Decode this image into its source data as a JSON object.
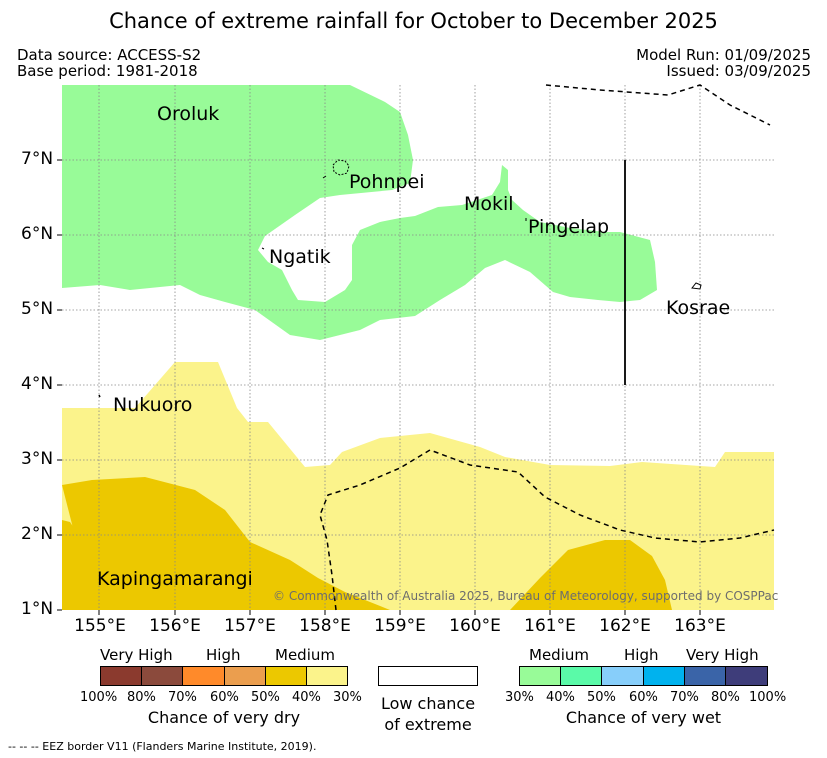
{
  "title": "Chance of extreme rainfall for October to December 2025",
  "header": {
    "data_source": "Data source: ACCESS-S2",
    "base_period": "Base period: 1981-2018",
    "model_run": "Model Run: 01/09/2025",
    "issued": "Issued: 03/09/2025"
  },
  "map": {
    "lat_ticks": [
      "7°N",
      "6°N",
      "5°N",
      "4°N",
      "3°N",
      "2°N",
      "1°N"
    ],
    "lon_ticks": [
      "155°E",
      "156°E",
      "157°E",
      "158°E",
      "159°E",
      "160°E",
      "161°E",
      "162°E",
      "163°E"
    ],
    "places": {
      "oroluk": "Oroluk",
      "pohnpei": "Pohnpei",
      "mokil": "Mokil",
      "pingelap": "Pingelap",
      "ngatik": "Ngatik",
      "kosrae": "Kosrae",
      "nukuoro": "Nukuoro",
      "kapingamarangi": "Kapingamarangi"
    },
    "copyright": "© Commonwealth of Australia 2025, Bureau of Meteorology, supported by COSPPac",
    "colors": {
      "wet_medium": "#98fb98",
      "dry_medium_light": "#fbf38b",
      "dry_medium_dark": "#ecc800"
    }
  },
  "legend": {
    "dry": {
      "labels": [
        "Very High",
        "High",
        "Medium"
      ],
      "percents": [
        "100%",
        "80%",
        "70%",
        "60%",
        "50%",
        "40%",
        "30%"
      ],
      "caption": "Chance of very dry",
      "colors": [
        "#8b3a2e",
        "#8b4a3c",
        "#ff8a2a",
        "#eb9e4e",
        "#ecc800",
        "#fbf38b"
      ]
    },
    "low": {
      "line1": "Low chance",
      "line2": "of extreme"
    },
    "wet": {
      "labels": [
        "Medium",
        "High",
        "Very High"
      ],
      "percents": [
        "30%",
        "40%",
        "50%",
        "60%",
        "70%",
        "80%",
        "100%"
      ],
      "caption": "Chance of very wet",
      "colors": [
        "#98fb98",
        "#5afaa8",
        "#87cefa",
        "#00b2ee",
        "#3a64a8",
        "#3e3d7a"
      ]
    }
  },
  "footnote": "--  --  -- EEZ border V11 (Flanders Marine Institute, 2019)."
}
